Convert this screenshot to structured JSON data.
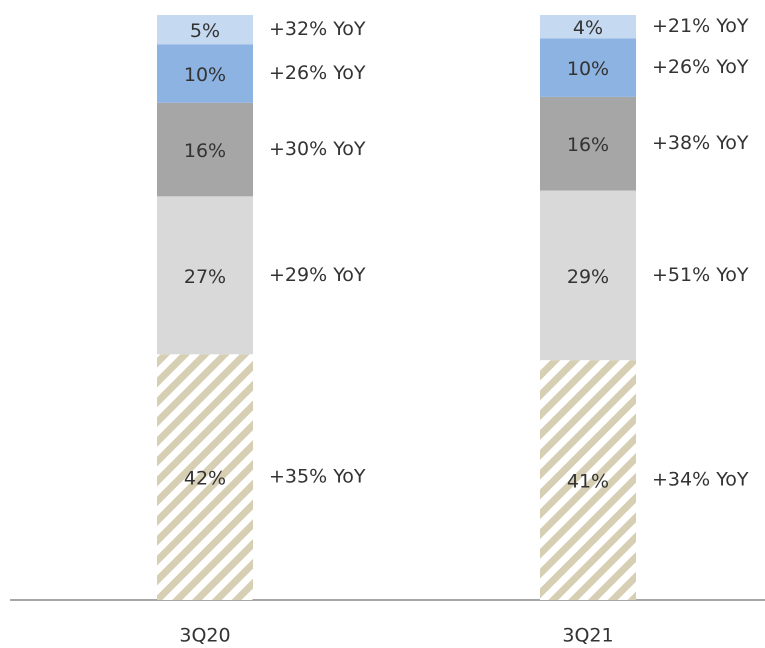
{
  "chart_data": {
    "type": "stacked_bar",
    "categories": [
      "3Q20",
      "3Q21"
    ],
    "series": [
      {
        "color": "#d6cfb4",
        "pattern": "hatch",
        "values": [
          42,
          41
        ],
        "value_labels": [
          "42%",
          "41%"
        ],
        "annotations": [
          "+35% YoY",
          "+34% YoY"
        ]
      },
      {
        "color": "#d9d9d9",
        "values": [
          27,
          29
        ],
        "value_labels": [
          "27%",
          "29%"
        ],
        "annotations": [
          "+29% YoY",
          "+51% YoY"
        ]
      },
      {
        "color": "#a6a6a6",
        "values": [
          16,
          16
        ],
        "value_labels": [
          "16%",
          "16%"
        ],
        "annotations": [
          "+30% YoY",
          "+38% YoY"
        ]
      },
      {
        "color": "#8db3e2",
        "values": [
          10,
          10
        ],
        "value_labels": [
          "10%",
          "10%"
        ],
        "annotations": [
          "+26% YoY",
          "+26% YoY"
        ]
      },
      {
        "color": "#c5d9f1",
        "values": [
          5,
          4
        ],
        "value_labels": [
          "5%",
          "4%"
        ],
        "annotations": [
          "+32% YoY",
          "+21% YoY"
        ]
      }
    ]
  }
}
